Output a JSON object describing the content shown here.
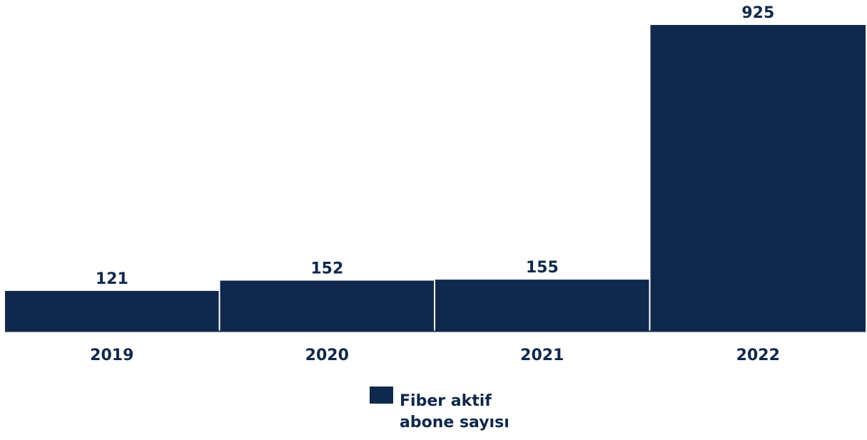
{
  "chart_data": {
    "type": "bar",
    "categories": [
      "2019",
      "2020",
      "2021",
      "2022"
    ],
    "series": [
      {
        "name": "Fiber aktif abone sayısı",
        "values": [
          121,
          152,
          155,
          925
        ],
        "color": "#10284b"
      }
    ],
    "value_labels": [
      "121",
      "152",
      "155",
      "925"
    ],
    "title": "",
    "xlabel": "",
    "ylabel": "",
    "ylim": [
      0,
      925
    ],
    "grid": false,
    "legend": "bottom-center",
    "colors": {
      "bar": "#10284b",
      "baseline": "#10284b",
      "text": "#10284b"
    }
  },
  "legend": {
    "label": "Fiber aktif abone sayısı"
  }
}
